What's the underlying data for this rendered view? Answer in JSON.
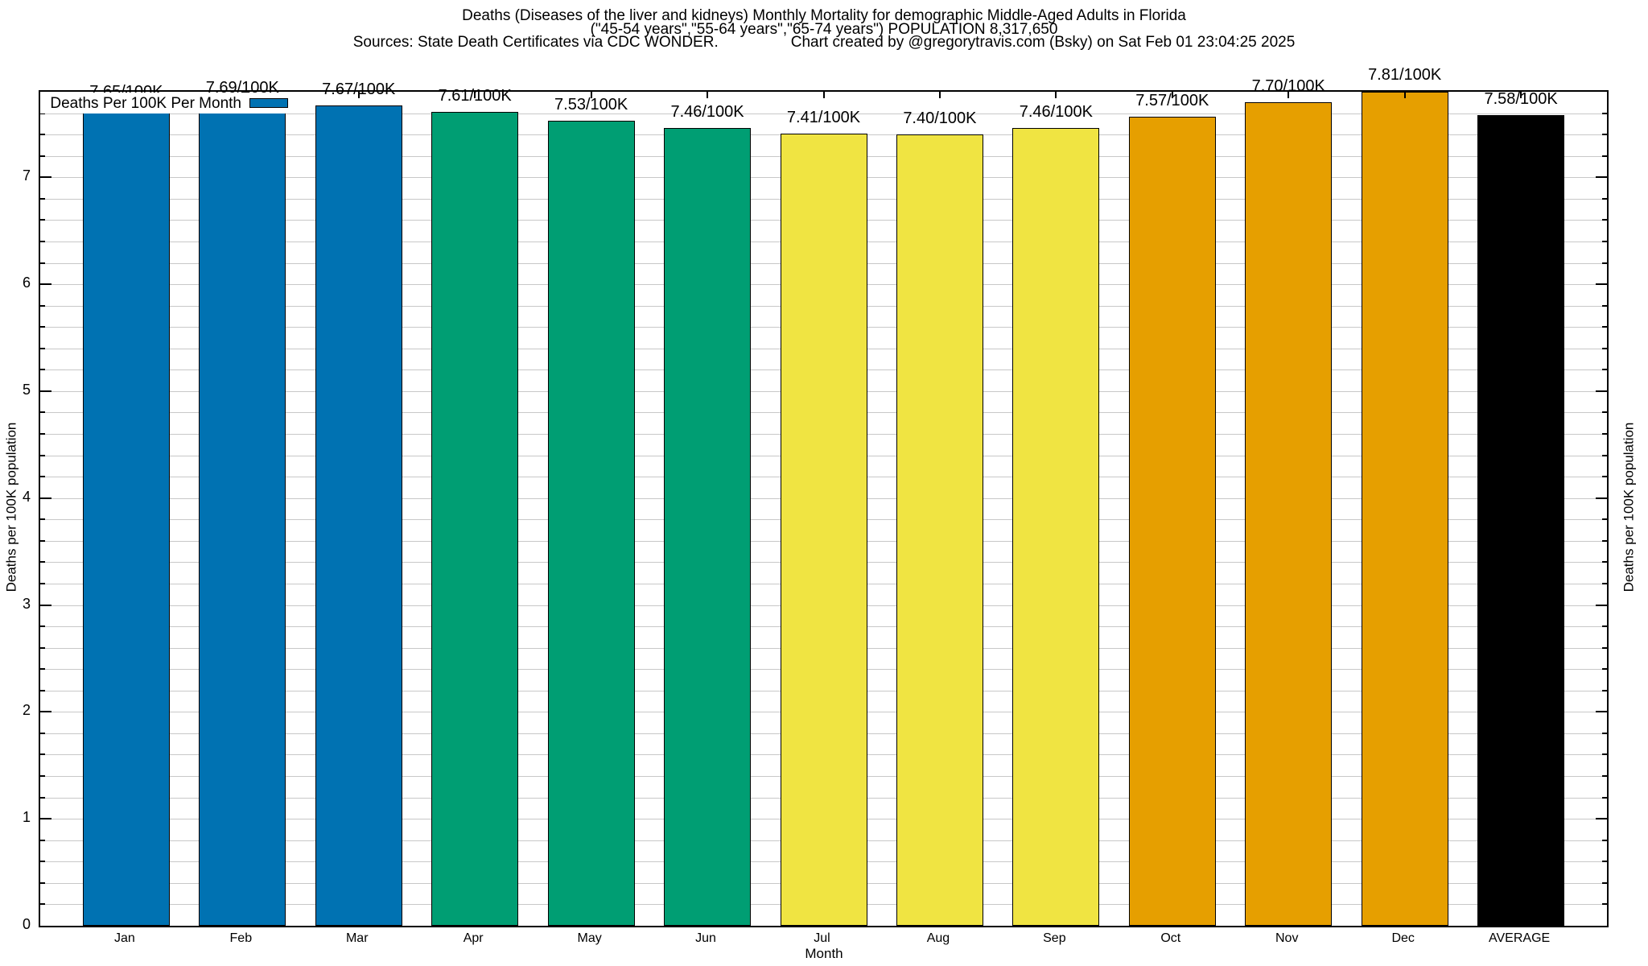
{
  "title": {
    "line1": "Deaths (Diseases of the liver and kidneys) Monthly Mortality for demographic Middle-Aged Adults in Florida",
    "line2": "(\"45-54 years\",\"55-64 years\",\"65-74 years\") POPULATION 8,317,650",
    "sources": "Sources: State Death Certificates via CDC WONDER.",
    "credit": "Chart created by @gregorytravis.com (Bsky) on Sat Feb 01 23:04:25 2025"
  },
  "legend": {
    "label": "Deaths Per 100K Per Month"
  },
  "axes": {
    "xlabel": "Month",
    "ylabel_left": "Deaths per 100K population",
    "ylabel_right": "Deaths per 100K population",
    "yticks": [
      0,
      1,
      2,
      3,
      4,
      5,
      6,
      7
    ],
    "ytick_minor_step": 0.2,
    "ymax_display": 7.8
  },
  "colors": {
    "blue": "#0072B2",
    "green": "#009E73",
    "yellow": "#F0E442",
    "orange": "#E69F00",
    "black": "#000000",
    "grid": "#c8c8c8"
  },
  "chart_data": {
    "type": "bar",
    "title": "Deaths (Diseases of the liver and kidneys) Monthly Mortality for demographic Middle-Aged Adults in Florida (\"45-54 years\",\"55-64 years\",\"65-74 years\") POPULATION 8,317,650",
    "xlabel": "Month",
    "ylabel": "Deaths per 100K population",
    "ylim": [
      0,
      7.8
    ],
    "grid": "minor horizontal gridlines every 0.2",
    "legend_position": "top-left",
    "note": "Dec bar (7.81) is clipped at the top plot border; value labels printed above each bar",
    "categories": [
      "Jan",
      "Feb",
      "Mar",
      "Apr",
      "May",
      "Jun",
      "Jul",
      "Aug",
      "Sep",
      "Oct",
      "Nov",
      "Dec",
      "AVERAGE"
    ],
    "values": [
      7.65,
      7.69,
      7.67,
      7.61,
      7.53,
      7.46,
      7.41,
      7.4,
      7.46,
      7.57,
      7.7,
      7.81,
      7.58
    ],
    "bar_labels": [
      "7.65/100K",
      "7.69/100K",
      "7.67/100K",
      "7.61/100K",
      "7.53/100K",
      "7.46/100K",
      "7.41/100K",
      "7.40/100K",
      "7.46/100K",
      "7.57/100K",
      "7.70/100K",
      "7.81/100K",
      "7.58/100K"
    ],
    "bar_colors": [
      "#0072B2",
      "#0072B2",
      "#0072B2",
      "#009E73",
      "#009E73",
      "#009E73",
      "#F0E442",
      "#F0E442",
      "#F0E442",
      "#E69F00",
      "#E69F00",
      "#E69F00",
      "#000000"
    ],
    "series_name": "Deaths Per 100K Per Month"
  }
}
